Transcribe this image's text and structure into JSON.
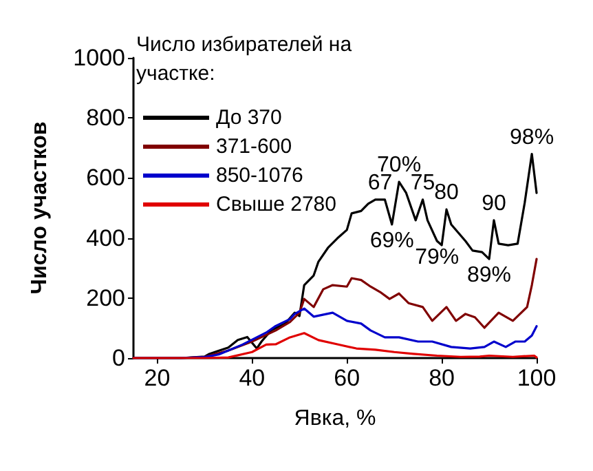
{
  "chart_data": {
    "type": "line",
    "xlabel": "Явка, %",
    "ylabel": "Число участков",
    "legend_title": "Число избирателей на участке:",
    "legend": "top left",
    "xlim": [
      15,
      100
    ],
    "xticks": [
      20,
      40,
      60,
      80,
      100
    ],
    "ylim": [
      0,
      1000
    ],
    "yticks": [
      0,
      200,
      400,
      600,
      800,
      1000
    ],
    "grid": false,
    "marker": "none",
    "line_style": "solid",
    "series": [
      {
        "name": "До 370",
        "color": "#000000",
        "x": [
          15,
          25,
          30,
          31,
          35,
          37,
          39,
          41,
          42,
          44,
          47,
          49,
          50,
          51,
          53,
          54,
          56,
          58,
          60,
          61,
          63,
          64.5,
          66,
          68,
          69.5,
          71,
          72.5,
          74.5,
          76,
          77,
          79,
          80,
          81,
          82,
          85,
          86.5,
          88.5,
          90,
          91,
          92,
          94,
          96,
          97.5,
          99,
          100
        ],
        "values": [
          0,
          0,
          5,
          14,
          35,
          60,
          70,
          32,
          55,
          92,
          115,
          151,
          140,
          243,
          275,
          321,
          367,
          399,
          427,
          482,
          490,
          514,
          528,
          528,
          445,
          587,
          550,
          459,
          528,
          459,
          390,
          376,
          495,
          445,
          390,
          358,
          353,
          330,
          459,
          381,
          376,
          381,
          518,
          680,
          550
        ]
      },
      {
        "name": "371-600",
        "color": "#800000",
        "x": [
          15,
          25,
          30,
          35,
          40,
          45,
          48,
          50,
          51,
          53,
          55,
          57,
          60,
          61,
          63,
          65,
          67,
          69,
          71,
          73,
          76,
          78,
          81,
          83,
          85,
          87,
          89,
          92,
          95,
          98,
          99,
          100
        ],
        "values": [
          0,
          0,
          4,
          25,
          55,
          92,
          120,
          151,
          197,
          170,
          229,
          243,
          238,
          266,
          260,
          238,
          220,
          197,
          215,
          183,
          170,
          124,
          170,
          124,
          147,
          136,
          101,
          151,
          124,
          170,
          243,
          330
        ]
      },
      {
        "name": "850-1076",
        "color": "#0000cc",
        "x": [
          15,
          25,
          30,
          33,
          38,
          43,
          45,
          48,
          49,
          51,
          53,
          57,
          60,
          63,
          65,
          68,
          71,
          75,
          78,
          82,
          86,
          89,
          91,
          93.5,
          95.5,
          97.5,
          99,
          100
        ],
        "values": [
          0,
          0,
          3,
          12,
          45,
          85,
          107,
          130,
          147,
          165,
          138,
          151,
          124,
          115,
          92,
          69,
          69,
          55,
          55,
          37,
          32,
          37,
          55,
          37,
          55,
          55,
          75,
          106
        ]
      },
      {
        "name": "Свыше 2780",
        "color": "#e00000",
        "x": [
          15,
          30,
          35,
          40,
          43,
          45,
          48,
          51,
          54,
          58,
          62,
          66,
          70,
          74,
          79,
          84,
          88,
          90,
          95,
          99.5,
          100
        ],
        "values": [
          0,
          0,
          2,
          20,
          45,
          46,
          69,
          83,
          60,
          46,
          32,
          28,
          20,
          14,
          8,
          4,
          5,
          8,
          4,
          8,
          2
        ]
      }
    ],
    "annotations": [
      {
        "text": "67",
        "x": 67,
        "y": 528
      },
      {
        "text": "70%",
        "x": 71,
        "y": 587
      },
      {
        "text": "69%",
        "x": 69.5,
        "y": 445
      },
      {
        "text": "75",
        "x": 76,
        "y": 528
      },
      {
        "text": "80",
        "x": 81,
        "y": 495
      },
      {
        "text": "79%",
        "x": 79,
        "y": 390
      },
      {
        "text": "90",
        "x": 91,
        "y": 459
      },
      {
        "text": "89%",
        "x": 90,
        "y": 330
      },
      {
        "text": "98%",
        "x": 99,
        "y": 680
      }
    ]
  }
}
